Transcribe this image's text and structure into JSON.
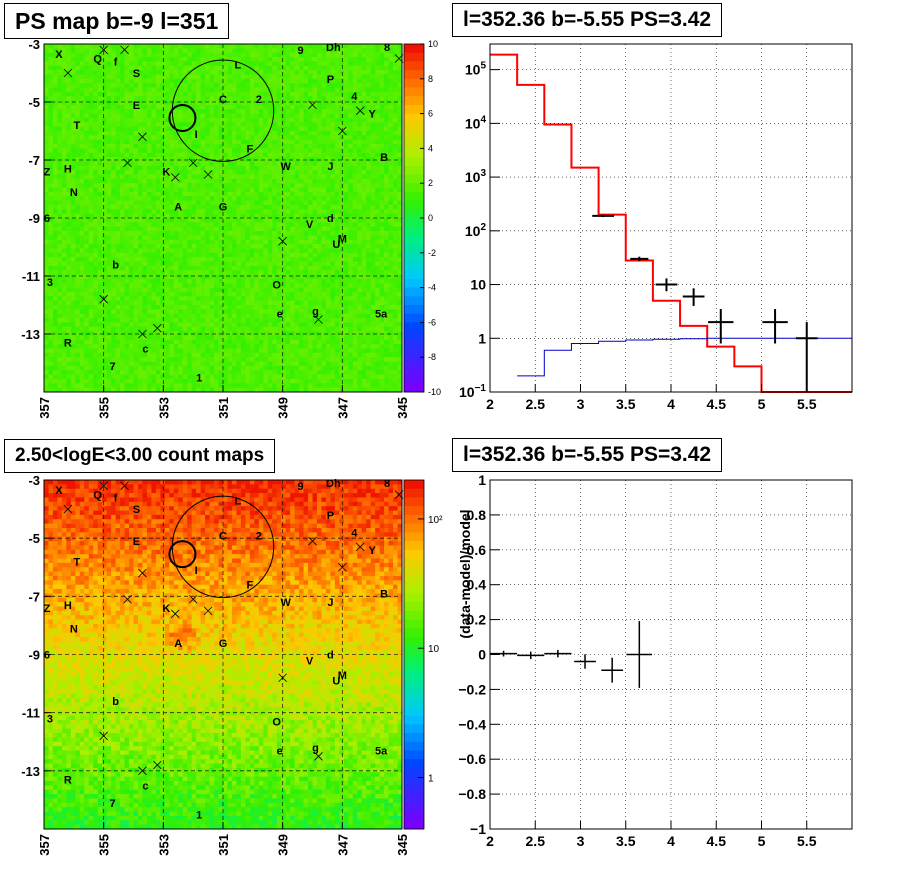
{
  "panels": {
    "ps_map": {
      "title": "PS map b=-9 l=351",
      "y_ticks": [
        "-3",
        "-5",
        "-7",
        "-9",
        "-11",
        "-13"
      ],
      "x_ticks": [
        "357",
        "355",
        "353",
        "351",
        "349",
        "347",
        "345"
      ],
      "palette_ticks": [
        "10",
        "8",
        "6",
        "4",
        "2",
        "0",
        "-2",
        "-4",
        "-6",
        "-8",
        "-10"
      ],
      "sources": [
        {
          "label": "X",
          "l": 356.5,
          "b": -3.35
        },
        {
          "label": "Q",
          "l": 355.2,
          "b": -3.5
        },
        {
          "label": "f",
          "l": 354.6,
          "b": -3.6
        },
        {
          "label": "S",
          "l": 353.9,
          "b": -4.0
        },
        {
          "label": "L",
          "l": 350.5,
          "b": -3.7
        },
        {
          "label": "9",
          "l": 348.4,
          "b": -3.2
        },
        {
          "label": "Dh",
          "l": 347.3,
          "b": -3.1
        },
        {
          "label": "8",
          "l": 345.5,
          "b": -3.1
        },
        {
          "label": "C",
          "l": 351.0,
          "b": -4.9
        },
        {
          "label": "2",
          "l": 349.8,
          "b": -4.9
        },
        {
          "label": "P",
          "l": 347.4,
          "b": -4.2
        },
        {
          "label": "4",
          "l": 346.6,
          "b": -4.8
        },
        {
          "label": "E",
          "l": 353.9,
          "b": -5.1
        },
        {
          "label": "Y",
          "l": 346.0,
          "b": -5.4
        },
        {
          "label": "T",
          "l": 355.9,
          "b": -5.8
        },
        {
          "label": "I",
          "l": 351.9,
          "b": -6.1
        },
        {
          "label": "F",
          "l": 350.1,
          "b": -6.6
        },
        {
          "label": "B",
          "l": 345.6,
          "b": -6.9
        },
        {
          "label": "Z",
          "l": 356.9,
          "b": -7.4
        },
        {
          "label": "H",
          "l": 356.2,
          "b": -7.3
        },
        {
          "label": "K",
          "l": 352.9,
          "b": -7.4
        },
        {
          "label": "W",
          "l": 348.9,
          "b": -7.2
        },
        {
          "label": "J",
          "l": 347.4,
          "b": -7.2
        },
        {
          "label": "N",
          "l": 356.0,
          "b": -8.1
        },
        {
          "label": "A",
          "l": 352.5,
          "b": -8.6
        },
        {
          "label": "G",
          "l": 351.0,
          "b": -8.6
        },
        {
          "label": "d",
          "l": 347.4,
          "b": -9.0
        },
        {
          "label": "V",
          "l": 348.1,
          "b": -9.2
        },
        {
          "label": "6",
          "l": 356.9,
          "b": -9.0
        },
        {
          "label": "M",
          "l": 347.0,
          "b": -9.7
        },
        {
          "label": "U",
          "l": 347.2,
          "b": -9.9
        },
        {
          "label": "b",
          "l": 354.6,
          "b": -10.6
        },
        {
          "label": "3",
          "l": 356.8,
          "b": -11.2
        },
        {
          "label": "O",
          "l": 349.2,
          "b": -11.3
        },
        {
          "label": "g",
          "l": 347.9,
          "b": -12.2
        },
        {
          "label": "e",
          "l": 349.1,
          "b": -12.3
        },
        {
          "label": "5a",
          "l": 345.7,
          "b": -12.3
        },
        {
          "label": "R",
          "l": 356.2,
          "b": -13.3
        },
        {
          "label": "c",
          "l": 353.6,
          "b": -13.5
        },
        {
          "label": "7",
          "l": 354.7,
          "b": -14.1
        },
        {
          "label": "1",
          "l": 351.8,
          "b": -14.5
        }
      ]
    },
    "count_map": {
      "title": "2.50<logE<3.00 count maps",
      "y_ticks": [
        "-3",
        "-5",
        "-7",
        "-9",
        "-11",
        "-13"
      ],
      "x_ticks": [
        "357",
        "355",
        "353",
        "351",
        "349",
        "347",
        "345"
      ],
      "palette_ticks": [
        "10²",
        "10",
        "1"
      ]
    },
    "spectrum": {
      "title": "l=352.36 b=-5.55 PS=3.42"
    },
    "residual": {
      "title": "l=352.36 b=-5.55 PS=3.42"
    }
  },
  "chart_data": [
    {
      "type": "heatmap",
      "title": "PS map b=-9 l=351",
      "xlabel": "",
      "ylabel": "",
      "xlim": [
        357,
        345
      ],
      "ylim": [
        -15,
        -3
      ],
      "x_ticks": [
        357,
        355,
        353,
        351,
        349,
        347,
        345
      ],
      "y_ticks": [
        -3,
        -5,
        -7,
        -9,
        -11,
        -13
      ],
      "z_range": [
        -10,
        10
      ],
      "grid": true,
      "palette": "rainbow"
    },
    {
      "type": "line",
      "title": "l=352.36 b=-5.55 PS=3.42",
      "xlabel": "",
      "ylabel": "",
      "xlim": [
        2,
        6
      ],
      "ylim": [
        0.1,
        300000
      ],
      "ylog": true,
      "x_ticks": [
        2,
        2.5,
        3,
        3.5,
        4,
        4.5,
        5,
        5.5
      ],
      "y_ticks": [
        {
          "v": 0.1,
          "label": "10",
          "exp": "−1"
        },
        {
          "v": 1,
          "label": "1",
          "exp": ""
        },
        {
          "v": 10,
          "label": "10",
          "exp": ""
        },
        {
          "v": 100,
          "label": "10",
          "exp": "2"
        },
        {
          "v": 1000,
          "label": "10",
          "exp": "3"
        },
        {
          "v": 10000,
          "label": "10",
          "exp": "4"
        },
        {
          "v": 100000,
          "label": "10",
          "exp": "5"
        }
      ],
      "grid": true,
      "series": [
        {
          "color": "#ff0000",
          "edges": [
            2,
            2.3,
            2.6,
            2.9,
            3.2,
            3.5,
            3.8,
            4.1,
            4.4,
            4.7,
            5.0,
            6.0
          ],
          "values": [
            190000,
            52000,
            9500,
            1500,
            200,
            28,
            5,
            1.7,
            0.7,
            0.3,
            0.1
          ]
        },
        {
          "color": "#0000cc",
          "edges": [
            2.3,
            2.6,
            2.9,
            3.2,
            3.5,
            3.8,
            4.1,
            4.4,
            4.7,
            5.0,
            6.0
          ],
          "values": [
            0.2,
            0.6,
            0.8,
            0.88,
            0.93,
            0.96,
            0.98,
            1.0,
            1.0,
            1.0
          ]
        },
        {
          "color": "#000000",
          "points": [
            {
              "x": 3.25,
              "y": 190,
              "xerr": 0.12,
              "ylo": 180,
              "yhi": 200
            },
            {
              "x": 3.65,
              "y": 30,
              "xerr": 0.1,
              "ylo": 27,
              "yhi": 33
            },
            {
              "x": 3.95,
              "y": 10,
              "xerr": 0.12,
              "ylo": 7.5,
              "yhi": 13
            },
            {
              "x": 4.25,
              "y": 6,
              "xerr": 0.12,
              "ylo": 4,
              "yhi": 8.5
            },
            {
              "x": 4.55,
              "y": 2,
              "xerr": 0.14,
              "ylo": 0.8,
              "yhi": 3.5
            },
            {
              "x": 5.15,
              "y": 2,
              "xerr": 0.14,
              "ylo": 0.8,
              "yhi": 3.5
            },
            {
              "x": 5.5,
              "y": 1,
              "xerr": 0.12,
              "ylo": 0.1,
              "yhi": 2
            }
          ]
        }
      ]
    },
    {
      "type": "heatmap",
      "title": "2.50<logE<3.00 count maps",
      "xlabel": "",
      "ylabel": "",
      "xlim": [
        357,
        345
      ],
      "ylim": [
        -15,
        -3
      ],
      "x_ticks": [
        357,
        355,
        353,
        351,
        349,
        347,
        345
      ],
      "y_ticks": [
        -3,
        -5,
        -7,
        -9,
        -11,
        -13
      ],
      "z_range": [
        0.4,
        200
      ],
      "zlog": true,
      "grid": true,
      "palette": "rainbow"
    },
    {
      "type": "scatter",
      "title": "l=352.36 b=-5.55 PS=3.42",
      "xlabel": "",
      "ylabel": "(data-model)/model",
      "xlim": [
        2,
        6
      ],
      "ylim": [
        -1,
        1
      ],
      "x_ticks": [
        2,
        2.5,
        3,
        3.5,
        4,
        4.5,
        5,
        5.5
      ],
      "y_ticks": [
        -1,
        -0.8,
        -0.6,
        -0.4,
        -0.2,
        0,
        0.2,
        0.4,
        0.6,
        0.8,
        1
      ],
      "grid": true,
      "points": [
        {
          "x": 2.15,
          "y": 0.005,
          "xerr": 0.15,
          "yerr": 0.005
        },
        {
          "x": 2.45,
          "y": -0.005,
          "xerr": 0.15,
          "yerr": 0.01
        },
        {
          "x": 2.75,
          "y": 0.005,
          "xerr": 0.15,
          "yerr": 0.01
        },
        {
          "x": 3.05,
          "y": -0.04,
          "xerr": 0.12,
          "yerr": 0.03
        },
        {
          "x": 3.35,
          "y": -0.09,
          "xerr": 0.12,
          "yerr": 0.06
        },
        {
          "x": 3.65,
          "y": 0.0,
          "xerr": 0.14,
          "yerr": 0.18
        }
      ]
    }
  ]
}
